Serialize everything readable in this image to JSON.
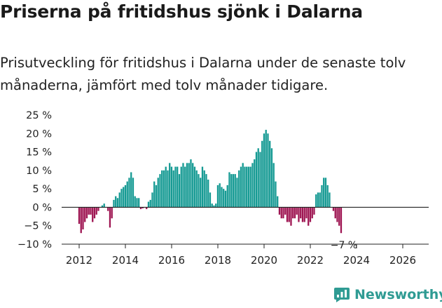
{
  "title": "Priserna på fritidshus sjönk i Dalarna",
  "subtitle": "Prisutveckling för fritidshus i Dalarna under de senaste tolv månaderna, jämfört med tolv månader tidigare.",
  "brand": {
    "name": "Newsworthy",
    "icon": "newsworthy-logo-icon"
  },
  "colors": {
    "positive": "#159a93",
    "negative": "#9e1552",
    "axis": "#222222",
    "text": "#222222"
  },
  "chart_data": {
    "type": "bar",
    "xlabel": "",
    "ylabel": "",
    "ylim": [
      -10,
      25
    ],
    "yticks": [
      25,
      20,
      15,
      10,
      5,
      0,
      -5,
      -10
    ],
    "ytick_labels": [
      "25 %",
      "20 %",
      "15 %",
      "10 %",
      "5 %",
      "0 %",
      "−5 %",
      "−10 %"
    ],
    "xticks": [
      "2012",
      "2014",
      "2016",
      "2018",
      "2020",
      "2022",
      "2024",
      "2026"
    ],
    "x_start": "2012-01",
    "frequency": "monthly",
    "grid": false,
    "last_value_label": "−7 %",
    "values": [
      -4.5,
      -7,
      -6,
      -4,
      -3,
      -2,
      -2,
      -4,
      -3,
      -2,
      -1,
      0,
      0.5,
      1,
      0,
      -1,
      -5.5,
      -3,
      2,
      3,
      2.5,
      4,
      5,
      5.5,
      6,
      7,
      8,
      9.5,
      8,
      3,
      2.5,
      2.5,
      -0.5,
      -0.3,
      0,
      -0.5,
      1.5,
      2,
      4,
      7,
      6,
      8,
      9,
      10,
      10,
      11,
      10,
      12,
      11,
      10,
      11,
      11,
      9,
      11,
      12,
      11,
      12,
      12,
      13,
      12,
      11,
      10,
      9,
      8,
      11,
      10,
      9,
      7.5,
      4,
      1,
      0.5,
      1,
      6,
      6.5,
      5.5,
      5,
      4.5,
      6,
      9.5,
      9,
      9,
      9,
      8,
      10,
      11,
      12,
      11,
      11,
      11,
      11,
      12,
      13,
      15,
      16,
      15,
      18,
      20,
      21,
      20,
      18,
      16,
      12,
      7,
      3,
      -2,
      -3,
      -3,
      -2,
      -4,
      -4,
      -5,
      -3,
      -3,
      -2,
      -4,
      -3,
      -4,
      -4,
      -3,
      -5,
      -4,
      -3,
      -2,
      3.5,
      4,
      4,
      6,
      8,
      8,
      6,
      4,
      0,
      -1,
      -3,
      -4,
      -5,
      -7
    ]
  }
}
